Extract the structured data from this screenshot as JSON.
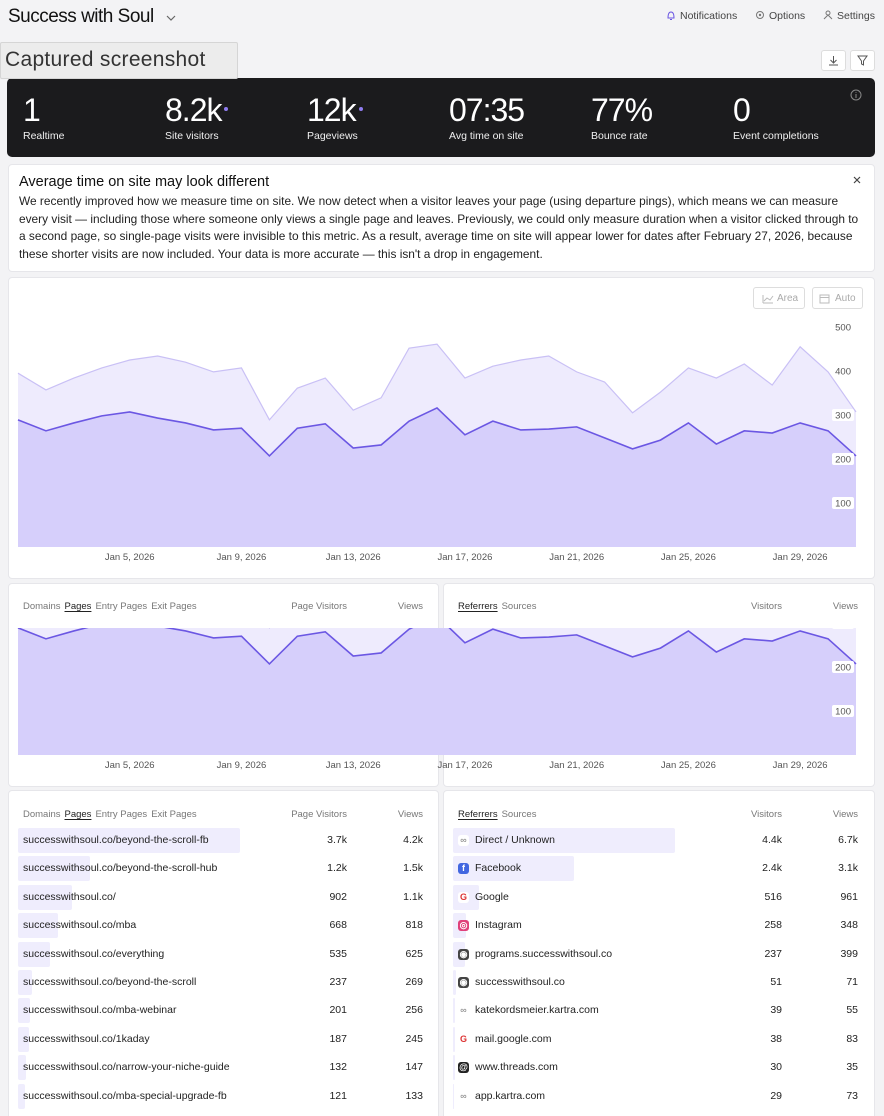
{
  "header": {
    "title": "Success with Soul",
    "nav": [
      "Notifications",
      "Options",
      "Settings"
    ]
  },
  "overlay_label": "Captured screenshot",
  "stats": [
    {
      "value": "1",
      "label": "Realtime"
    },
    {
      "value": "8.2k",
      "label": "Site visitors"
    },
    {
      "value": "12k",
      "label": "Pageviews"
    },
    {
      "value": "07:35",
      "label": "Avg time on site"
    },
    {
      "value": "77%",
      "label": "Bounce rate"
    },
    {
      "value": "0",
      "label": "Event completions"
    }
  ],
  "notice": {
    "title": "Average time on site may look different",
    "body": "We recently improved how we measure time on site. We now detect when a visitor leaves your page (using departure pings), which means we can measure every visit — including those where someone only views a single page and leaves. Previously, we could only measure duration when a visitor clicked through to a second page, so single-page visits were invisible to this metric. As a result, average time on site will appear lower for dates after February 27, 2026, because these shorter visits are now included. Your data is more accurate — this isn't a drop in engagement."
  },
  "chart_controls": [
    "Area",
    "Auto"
  ],
  "chart_data": {
    "type": "area",
    "categories": [
      null,
      null,
      null,
      null,
      "Jan 5, 2026",
      null,
      null,
      null,
      "Jan 9, 2026",
      null,
      null,
      null,
      "Jan 13, 2026",
      null,
      null,
      null,
      "Jan 17, 2026",
      null,
      null,
      null,
      "Jan 21, 2026",
      null,
      null,
      null,
      "Jan 25, 2026",
      null,
      null,
      null,
      "Jan 29, 2026",
      null,
      null
    ],
    "series": [
      {
        "color": "#c9c0f5",
        "fill": "#eeebfd",
        "values": [
          395,
          357,
          384,
          407,
          425,
          434,
          420,
          398,
          407,
          289,
          361,
          384,
          311,
          339,
          452,
          461,
          384,
          411,
          425,
          434,
          398,
          375,
          305,
          352,
          407,
          384,
          416,
          368,
          455,
          398,
          307
        ]
      },
      {
        "color": "#6b57e3",
        "fill": "#d6cffb",
        "values": [
          289,
          264,
          282,
          298,
          307,
          293,
          282,
          266,
          270,
          207,
          270,
          280,
          225,
          232,
          286,
          316,
          255,
          286,
          266,
          268,
          273,
          248,
          223,
          243,
          282,
          234,
          264,
          259,
          282,
          264,
          207
        ]
      }
    ],
    "ylim": [
      0,
      500
    ],
    "yticks": [
      100,
      200,
      300,
      400,
      500
    ]
  },
  "pages_table": {
    "tabs": [
      "Domains",
      "Pages",
      "Entry Pages",
      "Exit Pages"
    ],
    "active_tab": 1,
    "columns": [
      "Page Visitors",
      "Views"
    ],
    "rows": [
      [
        "successwithsoul.co/beyond-the-scroll-fb",
        "3.7k",
        "4.2k"
      ],
      [
        "successwithsoul.co/beyond-the-scroll-hub",
        "1.2k",
        "1.5k"
      ],
      [
        "successwithsoul.co/",
        902,
        "1.1k"
      ],
      [
        "successwithsoul.co/mba",
        668,
        818
      ],
      [
        "successwithsoul.co/everything",
        535,
        625
      ],
      [
        "successwithsoul.co/beyond-the-scroll",
        237,
        269
      ],
      [
        "successwithsoul.co/mba-webinar",
        201,
        256
      ],
      [
        "successwithsoul.co/1kaday",
        187,
        245
      ],
      [
        "successwithsoul.co/narrow-your-niche-guide",
        132,
        147
      ],
      [
        "successwithsoul.co/mba-special-upgrade-fb",
        121,
        133
      ]
    ]
  },
  "referrers_table": {
    "tabs": [
      "Referrers",
      "Sources"
    ],
    "active_tab": 0,
    "columns": [
      "Visitors",
      "Views"
    ],
    "rows": [
      [
        "Direct / Unknown",
        "4.4k",
        "6.7k"
      ],
      [
        "Facebook",
        "2.4k",
        "3.1k"
      ],
      [
        "Google",
        516,
        961
      ],
      [
        "Instagram",
        258,
        348
      ],
      [
        "programs.successwithsoul.co",
        237,
        399
      ],
      [
        "successwithsoul.co",
        51,
        71
      ],
      [
        "katekordsmeier.kartra.com",
        39,
        55
      ],
      [
        "mail.google.com",
        38,
        83
      ],
      [
        "www.threads.com",
        30,
        35
      ],
      [
        "app.kartra.com",
        29,
        73
      ]
    ]
  }
}
